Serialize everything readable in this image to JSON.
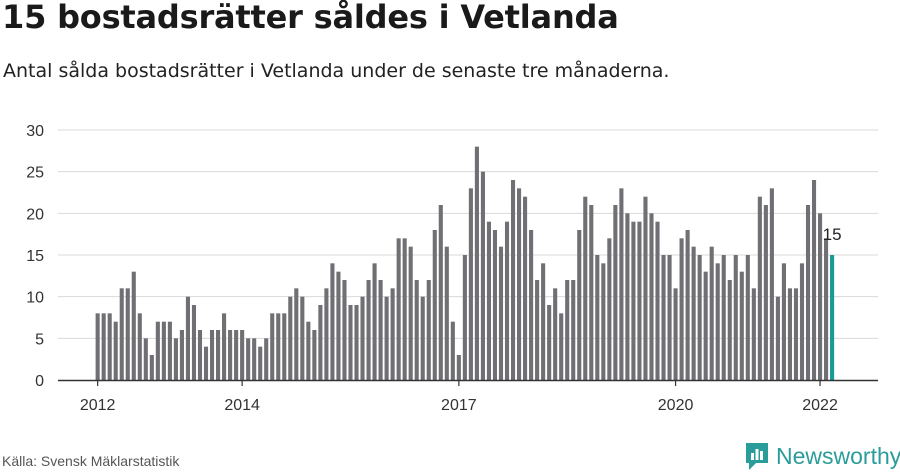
{
  "title": "15 bostadsrätter såldes i Vetlanda",
  "subtitle": "Antal sålda bostadsrätter i Vetlanda under de senaste tre månaderna.",
  "source": "Källa: Svensk Mäklarstatistik",
  "brand": {
    "name": "Newsworthy",
    "icon": "newsworthy-logo-icon",
    "color": "#2a9d9a"
  },
  "colors": {
    "bar": "#707074",
    "highlight": "#1a9a96",
    "grid": "#d9d9d9",
    "axis": "#333333"
  },
  "chart_data": {
    "type": "bar",
    "title": "15 bostadsrätter såldes i Vetlanda",
    "xlabel": "",
    "ylabel": "",
    "ylim": [
      0,
      30
    ],
    "yticks": [
      0,
      5,
      10,
      15,
      20,
      25,
      30
    ],
    "start": "2012-01",
    "x_tick_labels": [
      {
        "label": "2012",
        "index": 0
      },
      {
        "label": "2014",
        "index": 24
      },
      {
        "label": "2017",
        "index": 60
      },
      {
        "label": "2020",
        "index": 96
      },
      {
        "label": "2022",
        "index": 120
      }
    ],
    "values": [
      8,
      8,
      8,
      7,
      11,
      11,
      13,
      8,
      5,
      3,
      7,
      7,
      7,
      5,
      6,
      10,
      9,
      6,
      4,
      6,
      6,
      8,
      6,
      6,
      6,
      5,
      5,
      4,
      5,
      8,
      8,
      8,
      10,
      11,
      10,
      7,
      6,
      9,
      11,
      14,
      13,
      12,
      9,
      9,
      10,
      12,
      14,
      12,
      10,
      11,
      17,
      17,
      16,
      12,
      10,
      12,
      18,
      21,
      16,
      7,
      3,
      15,
      23,
      28,
      25,
      19,
      18,
      16,
      19,
      24,
      23,
      22,
      18,
      12,
      14,
      9,
      11,
      8,
      12,
      12,
      18,
      22,
      21,
      15,
      14,
      17,
      21,
      23,
      20,
      19,
      19,
      22,
      20,
      19,
      15,
      15,
      11,
      17,
      18,
      16,
      15,
      13,
      16,
      14,
      15,
      12,
      15,
      13,
      15,
      11,
      22,
      21,
      23,
      10,
      14,
      11,
      11,
      14,
      21,
      24,
      20,
      17,
      15
    ],
    "highlight_index": 122,
    "highlight_label": "15"
  }
}
